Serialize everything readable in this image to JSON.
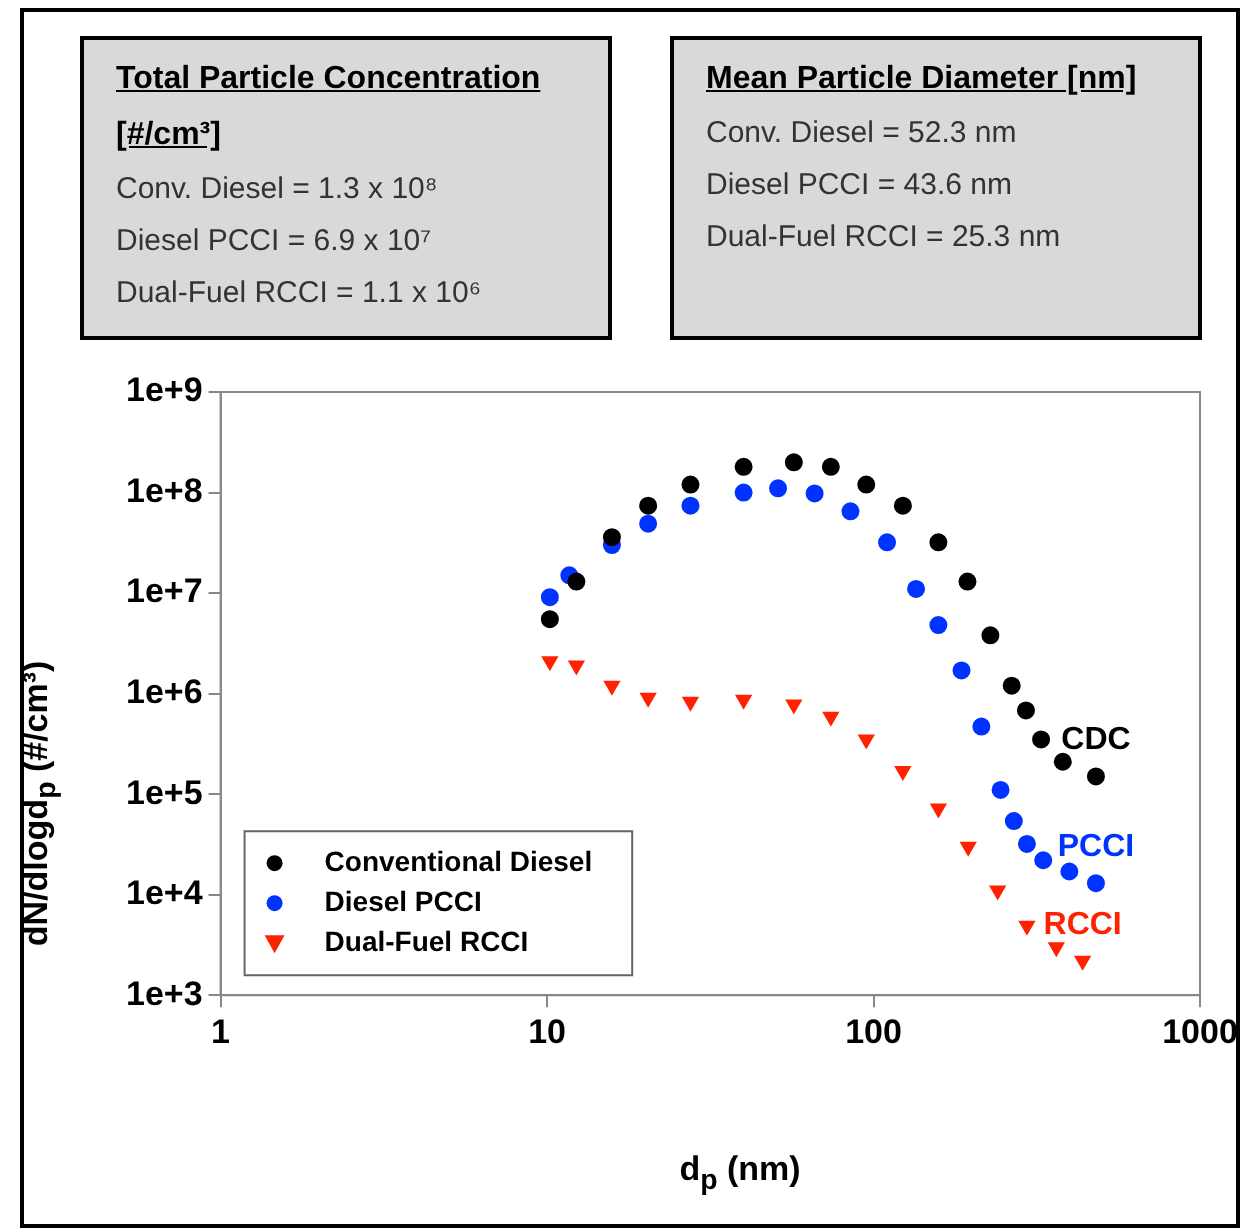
{
  "chart_data": {
    "type": "scatter",
    "xlabel": "d$_{p}$ (nm)",
    "ylabel": "dN/dlogd$_{p}$ (#/cm³)",
    "log": "xy",
    "xlim": [
      1,
      1000
    ],
    "xticks": [
      1,
      10,
      100,
      1000
    ],
    "ylim": [
      1000,
      1000000000
    ],
    "yticks": [
      {
        "value": 1000,
        "label": "1e+3"
      },
      {
        "value": 10000,
        "label": "1e+4"
      },
      {
        "value": 100000,
        "label": "1e+5"
      },
      {
        "value": 1000000,
        "label": "1e+6"
      },
      {
        "value": 10000000,
        "label": "1e+7"
      },
      {
        "value": 100000000,
        "label": "1e+8"
      },
      {
        "value": 1000000000,
        "label": "1e+9"
      }
    ],
    "grid": false,
    "legend": "bottom left",
    "marker": "circle",
    "annotations": [
      "Total Particle Concentration [#/cm³]",
      "Conv. Diesel = 1.3 x 10⁸",
      "Diesel PCCI = 6.9 x 10⁷",
      "Dual-Fuel RCCI = 1.1 x 10⁶",
      "Mean Particle Diameter [nm]",
      "Conv. Diesel = 52.3 nm",
      "Diesel PCCI = 43.6 nm",
      "Dual-Fuel RCCI = 25.3 nm",
      "CDC",
      "PCCI",
      "RCCI"
    ],
    "series": [
      {
        "name": "Conventional Diesel",
        "color": "#000000",
        "x": [
          10.2,
          12.3,
          15.8,
          20.4,
          27.5,
          40,
          57,
          74,
          95,
          123,
          158,
          194,
          228,
          265,
          293,
          326,
          380,
          480
        ],
        "values": [
          5500000,
          13000000,
          36000000,
          74000000,
          120000000,
          180000000,
          200000000,
          180000000,
          120000000,
          74000000,
          32000000,
          13000000,
          3800000,
          1200000,
          680000,
          350000,
          210000,
          150000
        ]
      },
      {
        "name": "Diesel PCCI",
        "color": "#0033ff",
        "x": [
          10.2,
          11.7,
          15.8,
          20.4,
          27.5,
          40,
          51,
          66,
          85,
          110,
          135,
          158,
          186,
          214,
          245,
          269,
          295,
          331,
          398,
          480
        ],
        "values": [
          9100000,
          15000000,
          30000000,
          49000000,
          74000000,
          100000000,
          110000000,
          98000000,
          65000000,
          32000000,
          11000000,
          4800000,
          1700000,
          470000,
          110000,
          54000,
          32000,
          22000,
          17000,
          13000
        ]
      },
      {
        "name": "Dual-Fuel RCCI",
        "color": "#ff2200",
        "marker": "triangle",
        "x": [
          10.2,
          12.3,
          15.8,
          20.4,
          27.5,
          40,
          57,
          74,
          95,
          123,
          158,
          195,
          240,
          295,
          363,
          437
        ],
        "values": [
          2100000,
          1900000,
          1200000,
          910000,
          830000,
          870000,
          780000,
          590000,
          350000,
          170000,
          72000,
          30000,
          11000,
          4900,
          3000,
          2200
        ]
      }
    ]
  }
}
